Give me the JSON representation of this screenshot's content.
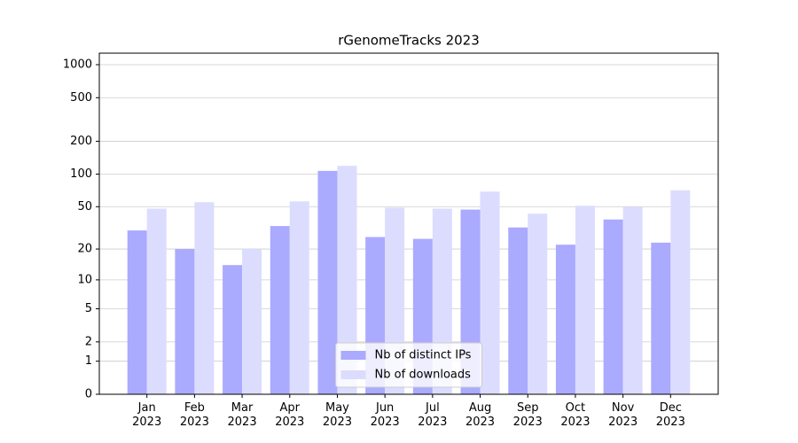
{
  "chart_data": {
    "type": "bar",
    "title": "rGenomeTracks 2023",
    "categories": [
      "Jan\n2023",
      "Feb\n2023",
      "Mar\n2023",
      "Apr\n2023",
      "May\n2023",
      "Jun\n2023",
      "Jul\n2023",
      "Aug\n2023",
      "Sep\n2023",
      "Oct\n2023",
      "Nov\n2023",
      "Dec\n2023"
    ],
    "series": [
      {
        "name": "Nb of distinct IPs",
        "color": "#aaaaff",
        "values": [
          30,
          20,
          14,
          33,
          107,
          26,
          25,
          47,
          32,
          22,
          38,
          23
        ]
      },
      {
        "name": "Nb of downloads",
        "color": "#dcdcff",
        "values": [
          48,
          55,
          20,
          56,
          119,
          49,
          48,
          69,
          43,
          51,
          50,
          71
        ]
      }
    ],
    "yscale": "log1p",
    "ylim": [
      0,
      1273
    ],
    "yticks": [
      0,
      1,
      2,
      5,
      10,
      20,
      50,
      100,
      200,
      500,
      1000
    ],
    "grid": true,
    "legend": "lower center"
  }
}
